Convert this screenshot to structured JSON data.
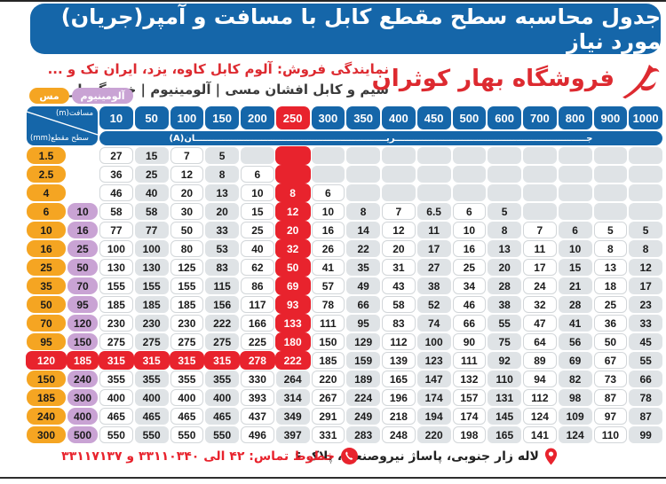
{
  "title_bar": "جدول محاسبه سطح مقطع کابل با مسافت و آمپر(جریان) مورد نیاز",
  "brand": {
    "store_name": "فروشگاه بهار کوثران"
  },
  "subtitle": {
    "line1": "نمایندگی فروش: آلوم کابل کاوه، یزد، ایران تک و ...",
    "line2": "سیم و کابل افشان مسی | آلومینیوم | خودنگهدار"
  },
  "legend": {
    "copper": "مس",
    "aluminum": "آلومینیوم"
  },
  "table": {
    "corner": {
      "distance_label": "مسافت‎(m)‎",
      "section_label": "سطح مقطع‎(mm)‎"
    },
    "current_band": "جـــــــــــــــــــــــــــــــــــــــــــــــــــــــــــــــریـــــــــــــــــــــــــــــــــــــــــــــــــــــــــــــــان‎(A)‎",
    "columns": [
      "10",
      "50",
      "100",
      "150",
      "200",
      "250",
      "300",
      "350",
      "400",
      "450",
      "500",
      "600",
      "700",
      "800",
      "900",
      "1000"
    ],
    "highlight": {
      "column_index": 5,
      "row_index": 11,
      "highlight_column_header": "250"
    },
    "rows": [
      {
        "cu": "1.5",
        "al": "",
        "values": [
          "27",
          "15",
          "7",
          "5",
          "",
          "",
          "",
          "",
          "",
          "",
          "",
          "",
          "",
          "",
          "",
          ""
        ]
      },
      {
        "cu": "2.5",
        "al": "",
        "values": [
          "36",
          "25",
          "12",
          "8",
          "6",
          "",
          "",
          "",
          "",
          "",
          "",
          "",
          "",
          "",
          "",
          ""
        ]
      },
      {
        "cu": "4",
        "al": "",
        "values": [
          "46",
          "40",
          "20",
          "13",
          "10",
          "8",
          "6",
          "",
          "",
          "",
          "",
          "",
          "",
          "",
          "",
          ""
        ]
      },
      {
        "cu": "6",
        "al": "10",
        "values": [
          "58",
          "58",
          "30",
          "20",
          "15",
          "12",
          "10",
          "8",
          "7",
          "6.5",
          "6",
          "5",
          "",
          "",
          "",
          ""
        ]
      },
      {
        "cu": "10",
        "al": "16",
        "values": [
          "77",
          "77",
          "50",
          "33",
          "25",
          "20",
          "16",
          "14",
          "12",
          "11",
          "10",
          "8",
          "7",
          "6",
          "5",
          "5"
        ]
      },
      {
        "cu": "16",
        "al": "25",
        "values": [
          "100",
          "100",
          "80",
          "53",
          "40",
          "32",
          "26",
          "22",
          "20",
          "17",
          "16",
          "13",
          "11",
          "10",
          "8",
          "8"
        ]
      },
      {
        "cu": "25",
        "al": "50",
        "values": [
          "130",
          "130",
          "125",
          "83",
          "62",
          "50",
          "41",
          "35",
          "31",
          "27",
          "25",
          "20",
          "17",
          "15",
          "13",
          "12"
        ]
      },
      {
        "cu": "35",
        "al": "70",
        "values": [
          "155",
          "155",
          "155",
          "115",
          "86",
          "69",
          "57",
          "49",
          "43",
          "38",
          "34",
          "28",
          "24",
          "21",
          "18",
          "17"
        ]
      },
      {
        "cu": "50",
        "al": "95",
        "values": [
          "185",
          "185",
          "185",
          "156",
          "117",
          "93",
          "78",
          "66",
          "58",
          "52",
          "46",
          "38",
          "32",
          "28",
          "25",
          "23"
        ]
      },
      {
        "cu": "70",
        "al": "120",
        "values": [
          "230",
          "230",
          "230",
          "222",
          "166",
          "133",
          "111",
          "95",
          "83",
          "74",
          "66",
          "55",
          "47",
          "41",
          "36",
          "33"
        ]
      },
      {
        "cu": "95",
        "al": "150",
        "values": [
          "275",
          "275",
          "275",
          "275",
          "225",
          "180",
          "150",
          "129",
          "112",
          "100",
          "90",
          "75",
          "64",
          "56",
          "50",
          "45"
        ]
      },
      {
        "cu": "120",
        "al": "185",
        "values": [
          "315",
          "315",
          "315",
          "315",
          "278",
          "222",
          "185",
          "159",
          "139",
          "123",
          "111",
          "92",
          "89",
          "69",
          "67",
          "55"
        ]
      },
      {
        "cu": "150",
        "al": "240",
        "values": [
          "355",
          "355",
          "355",
          "355",
          "330",
          "264",
          "220",
          "189",
          "165",
          "147",
          "132",
          "110",
          "94",
          "82",
          "73",
          "66"
        ]
      },
      {
        "cu": "185",
        "al": "300",
        "values": [
          "400",
          "400",
          "400",
          "400",
          "393",
          "314",
          "267",
          "224",
          "196",
          "174",
          "157",
          "131",
          "112",
          "98",
          "87",
          "78"
        ]
      },
      {
        "cu": "240",
        "al": "400",
        "values": [
          "465",
          "465",
          "465",
          "465",
          "437",
          "349",
          "291",
          "249",
          "218",
          "194",
          "174",
          "145",
          "124",
          "109",
          "97",
          "87"
        ]
      },
      {
        "cu": "300",
        "al": "500",
        "values": [
          "550",
          "550",
          "550",
          "550",
          "496",
          "397",
          "331",
          "283",
          "248",
          "220",
          "198",
          "165",
          "141",
          "124",
          "110",
          "99"
        ]
      }
    ]
  },
  "footer": {
    "address": "لاله زار جنوبی، پاساژ نیروصنعت، پلاک ۶",
    "phone": "خطوط تماس: ۴۲ الی ۳۳۱۱۰۳۴۰ و ۳۳۱۱۷۱۳۷"
  },
  "colors": {
    "blue": "#1566a9",
    "red": "#e8232d",
    "orange": "#f5a522",
    "purple": "#c9a3d4",
    "cell_gray": "#dfe3e6",
    "brand_red": "#dd2a30"
  }
}
